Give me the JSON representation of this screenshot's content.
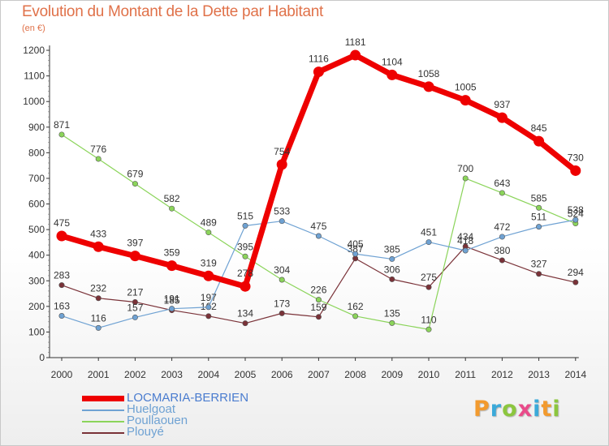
{
  "chart_data": {
    "type": "line",
    "title": "Evolution du Montant de la Dette par Habitant",
    "subtitle": "(en €)",
    "xlabel": "",
    "ylabel": "",
    "categories": [
      "2000",
      "2001",
      "2002",
      "2003",
      "2004",
      "2005",
      "2006",
      "2007",
      "2008",
      "2009",
      "2010",
      "2011",
      "2012",
      "2013",
      "2014"
    ],
    "ylim": [
      0,
      1200
    ],
    "yticks": [
      0,
      100,
      200,
      300,
      400,
      500,
      600,
      700,
      800,
      900,
      1000,
      1100,
      1200
    ],
    "grid": false,
    "legend_position": "bottom-left",
    "series": [
      {
        "name": "LOCMARIA-BERRIEN",
        "color": "#ee0000",
        "values": [
          475,
          433,
          397,
          359,
          319,
          278,
          754,
          1116,
          1181,
          1104,
          1058,
          1005,
          937,
          845,
          730
        ]
      },
      {
        "name": "Huelgoat",
        "color": "#6fa2d3",
        "values": [
          163,
          116,
          157,
          191,
          197,
          515,
          533,
          475,
          405,
          385,
          451,
          418,
          472,
          511,
          538
        ]
      },
      {
        "name": "Poullaouen",
        "color": "#8bd45a",
        "values": [
          871,
          776,
          679,
          582,
          489,
          395,
          304,
          226,
          162,
          135,
          110,
          700,
          643,
          585,
          524
        ]
      },
      {
        "name": "Plouyé",
        "color": "#7a3238",
        "values": [
          283,
          232,
          217,
          185,
          162,
          134,
          173,
          159,
          387,
          306,
          275,
          434,
          380,
          327,
          294
        ]
      }
    ]
  },
  "brand": {
    "letters": [
      "P",
      "r",
      "o",
      "x",
      "i",
      "t",
      "i"
    ],
    "colors": [
      "#f29a2e",
      "#3ba9d9",
      "#8cc63e",
      "#e94b8a",
      "#3ba9d9",
      "#f29a2e",
      "#8cc63e"
    ]
  }
}
